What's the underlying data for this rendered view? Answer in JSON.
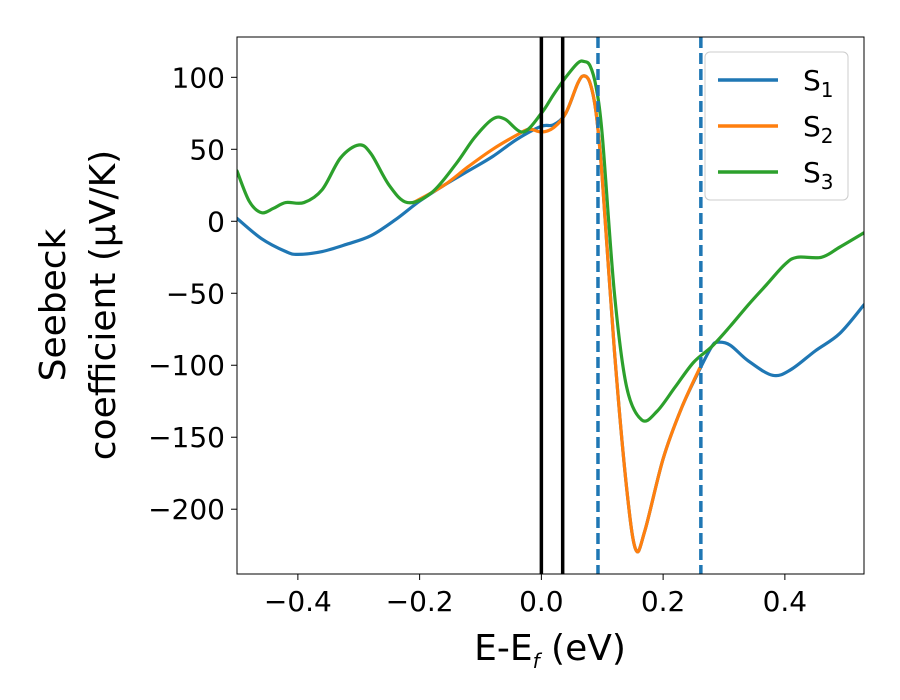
{
  "chart_data": {
    "type": "line",
    "xlabel": "E-E",
    "xlabel_sub": "f",
    "xlabel_unit": " (eV)",
    "ylabel_line1": "Seebeck",
    "ylabel_line2": "coefficient  (μV/K)",
    "xlim": [
      -0.5,
      0.53
    ],
    "ylim": [
      -245,
      128
    ],
    "x_ticks": [
      -0.4,
      -0.2,
      0.0,
      0.2,
      0.4
    ],
    "x_tick_labels": [
      "−0.4",
      "−0.2",
      "0.0",
      "0.2",
      "0.4"
    ],
    "y_ticks": [
      100,
      50,
      0,
      -50,
      -100,
      -150,
      -200
    ],
    "y_tick_labels": [
      "100",
      "50",
      "0",
      "−50",
      "−100",
      "−150",
      "−200"
    ],
    "legend_position": "top-right",
    "series": [
      {
        "name": "S",
        "name_sub": "1",
        "color": "#1f77b4",
        "points": [
          [
            -0.5,
            2
          ],
          [
            -0.46,
            -12
          ],
          [
            -0.42,
            -21
          ],
          [
            -0.4,
            -23
          ],
          [
            -0.36,
            -21
          ],
          [
            -0.32,
            -16
          ],
          [
            -0.28,
            -10
          ],
          [
            -0.24,
            1
          ],
          [
            -0.2,
            14
          ],
          [
            -0.16,
            25
          ],
          [
            -0.12,
            35
          ],
          [
            -0.08,
            45
          ],
          [
            -0.04,
            57
          ],
          [
            0.0,
            66
          ],
          [
            0.02,
            67
          ],
          [
            0.04,
            75
          ],
          [
            0.06,
            96
          ],
          [
            0.07,
            101
          ],
          [
            0.08,
            96
          ],
          [
            0.09,
            75
          ],
          [
            0.1,
            30
          ],
          [
            0.12,
            -90
          ],
          [
            0.14,
            -185
          ],
          [
            0.155,
            -228
          ],
          [
            0.17,
            -215
          ],
          [
            0.2,
            -165
          ],
          [
            0.23,
            -130
          ],
          [
            0.26,
            -103
          ],
          [
            0.28,
            -87
          ],
          [
            0.29,
            -84
          ],
          [
            0.31,
            -86
          ],
          [
            0.34,
            -97
          ],
          [
            0.38,
            -107
          ],
          [
            0.41,
            -103
          ],
          [
            0.45,
            -90
          ],
          [
            0.49,
            -78
          ],
          [
            0.53,
            -58
          ]
        ]
      },
      {
        "name": "S",
        "name_sub": "2",
        "color": "#ff7f0e",
        "points": [
          [
            -0.21,
            13
          ],
          [
            -0.16,
            25
          ],
          [
            -0.12,
            38
          ],
          [
            -0.08,
            50
          ],
          [
            -0.04,
            60
          ],
          [
            -0.02,
            64
          ],
          [
            0.0,
            62
          ],
          [
            0.02,
            65
          ],
          [
            0.04,
            75
          ],
          [
            0.06,
            96
          ],
          [
            0.07,
            101
          ],
          [
            0.08,
            96
          ],
          [
            0.09,
            75
          ],
          [
            0.1,
            30
          ],
          [
            0.12,
            -90
          ],
          [
            0.14,
            -185
          ],
          [
            0.155,
            -228
          ],
          [
            0.17,
            -215
          ],
          [
            0.2,
            -165
          ],
          [
            0.23,
            -130
          ],
          [
            0.26,
            -102
          ]
        ]
      },
      {
        "name": "S",
        "name_sub": "3",
        "color": "#2ca02c",
        "points": [
          [
            -0.5,
            35
          ],
          [
            -0.48,
            14
          ],
          [
            -0.46,
            6
          ],
          [
            -0.44,
            9
          ],
          [
            -0.42,
            13
          ],
          [
            -0.39,
            13
          ],
          [
            -0.36,
            22
          ],
          [
            -0.33,
            44
          ],
          [
            -0.3,
            53
          ],
          [
            -0.28,
            47
          ],
          [
            -0.25,
            25
          ],
          [
            -0.22,
            13
          ],
          [
            -0.18,
            20
          ],
          [
            -0.14,
            40
          ],
          [
            -0.11,
            58
          ],
          [
            -0.08,
            71
          ],
          [
            -0.06,
            71
          ],
          [
            -0.03,
            62
          ],
          [
            0.0,
            75
          ],
          [
            0.02,
            88
          ],
          [
            0.04,
            100
          ],
          [
            0.06,
            110
          ],
          [
            0.07,
            111
          ],
          [
            0.08,
            108
          ],
          [
            0.09,
            93
          ],
          [
            0.1,
            60
          ],
          [
            0.12,
            -50
          ],
          [
            0.14,
            -115
          ],
          [
            0.165,
            -138
          ],
          [
            0.19,
            -132
          ],
          [
            0.22,
            -115
          ],
          [
            0.25,
            -98
          ],
          [
            0.28,
            -87
          ],
          [
            0.31,
            -73
          ],
          [
            0.34,
            -58
          ],
          [
            0.37,
            -44
          ],
          [
            0.4,
            -30
          ],
          [
            0.42,
            -25
          ],
          [
            0.46,
            -25
          ],
          [
            0.49,
            -18
          ],
          [
            0.53,
            -8
          ]
        ]
      }
    ],
    "vertical_lines": [
      {
        "x": 0.0,
        "style": "solid",
        "color": "#000000"
      },
      {
        "x": 0.035,
        "style": "solid",
        "color": "#000000"
      },
      {
        "x": 0.093,
        "style": "dashed",
        "color": "#1f77b4"
      },
      {
        "x": 0.262,
        "style": "dashed",
        "color": "#1f77b4"
      }
    ]
  }
}
